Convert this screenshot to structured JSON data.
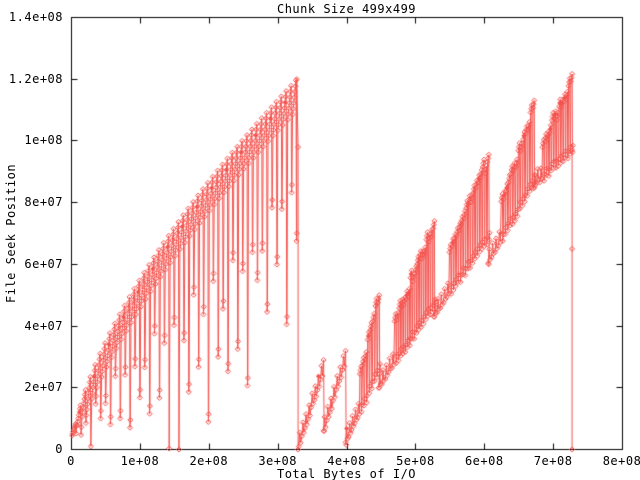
{
  "chart_data": {
    "type": "line",
    "style": "gnuplot-linespoints, open diamond markers, no grid, mirrored inward ticks on all four borders",
    "title": "Chunk Size 499x499",
    "xlabel": "Total Bytes of I/O",
    "ylabel": "File Seek Position",
    "xlim": [
      0,
      800000000
    ],
    "ylim": [
      0,
      140000000
    ],
    "xticks": [
      {
        "value": 0,
        "label": "0"
      },
      {
        "value": 100000000,
        "label": "1e+08"
      },
      {
        "value": 200000000,
        "label": "2e+08"
      },
      {
        "value": 300000000,
        "label": "3e+08"
      },
      {
        "value": 400000000,
        "label": "4e+08"
      },
      {
        "value": 500000000,
        "label": "5e+08"
      },
      {
        "value": 600000000,
        "label": "6e+08"
      },
      {
        "value": 700000000,
        "label": "7e+08"
      },
      {
        "value": 800000000,
        "label": "8e+08"
      }
    ],
    "yticks": [
      {
        "value": 0,
        "label": "0"
      },
      {
        "value": 20000000,
        "label": "2e+07"
      },
      {
        "value": 40000000,
        "label": "4e+07"
      },
      {
        "value": 60000000,
        "label": "6e+07"
      },
      {
        "value": 80000000,
        "label": "8e+07"
      },
      {
        "value": 100000000,
        "label": "1e+08"
      },
      {
        "value": 120000000,
        "label": "1.2e+08"
      },
      {
        "value": 140000000,
        "label": "1.4e+08"
      }
    ],
    "grid": false,
    "legend": null,
    "background": "#ffffff",
    "axis_color": "#000000",
    "series_color": "#f4524d",
    "marker": "diamond",
    "pattern_description": "Seek-position trace of chunked I/O. Pass 1 (0 to 3.27e8 bytes): widening sawtooth fan, concave upper envelope rising 0 to 1.2e8, vertical re-seek spikes of growing depth, one full seek to 0 near 1.5e8, then drop to 0. Pass 2 (3.3e8 to 7.26e8): shingled diagonal zigzag bands climbing linearly to 1.2e8, each band dropping back ~2.5e7, final seek to 0 at 7.26e8 with markers at 9.7e7 and 6.5e7.",
    "sections": [
      {
        "name": "pass-1-fan",
        "kind": "fan",
        "x_start": 0,
        "x_end": 327000000,
        "peak": 120000000,
        "envelope_exponent": 0.65,
        "teeth": 46,
        "sub_markers": 7,
        "depth_pattern": [
          0.45,
          0.8,
          0.55,
          1.0,
          0.5,
          0.75,
          0.62,
          0.9
        ],
        "full_drops": [
          151000000
        ],
        "end_drop_markers": [
          98000000
        ],
        "end_drop_to": 0
      },
      {
        "name": "pass-2-shingles",
        "kind": "shingles",
        "units": [
          {
            "x0": 330000000,
            "x1": 366000000,
            "b0": 1000000,
            "t1": 29000000,
            "amp": 3500000,
            "thin": 1.0,
            "drop_to": 6000000
          },
          {
            "x0": 366000000,
            "x1": 398000000,
            "b0": 6000000,
            "t1": 32000000,
            "amp": 3500000,
            "thin": 1.0,
            "drop_to": 1500000
          },
          {
            "x0": 398000000,
            "x1": 446000000,
            "b0": 2000000,
            "t1": 51000000,
            "amp": 26000000,
            "thin": 0.45,
            "drop_to": 20000000
          },
          {
            "x0": 446000000,
            "x1": 526000000,
            "b0": 20000000,
            "t1": 74000000,
            "amp": 28000000,
            "thin": 0.3,
            "drop_to": 43000000
          },
          {
            "x0": 526000000,
            "x1": 605000000,
            "b0": 43000000,
            "t1": 96000000,
            "amp": 28000000,
            "thin": 0.3,
            "drop_to": 60000000
          },
          {
            "x0": 605000000,
            "x1": 671000000,
            "b0": 60000000,
            "t1": 112000000,
            "amp": 26000000,
            "thin": 0.3,
            "drop_to": 85000000
          },
          {
            "x0": 671000000,
            "x1": 726000000,
            "b0": 85000000,
            "t1": 120000000,
            "amp": 24000000,
            "thin": 0.25,
            "drop_to": 0,
            "final_drop_markers": [
              97000000,
              65000000
            ]
          }
        ]
      }
    ]
  }
}
